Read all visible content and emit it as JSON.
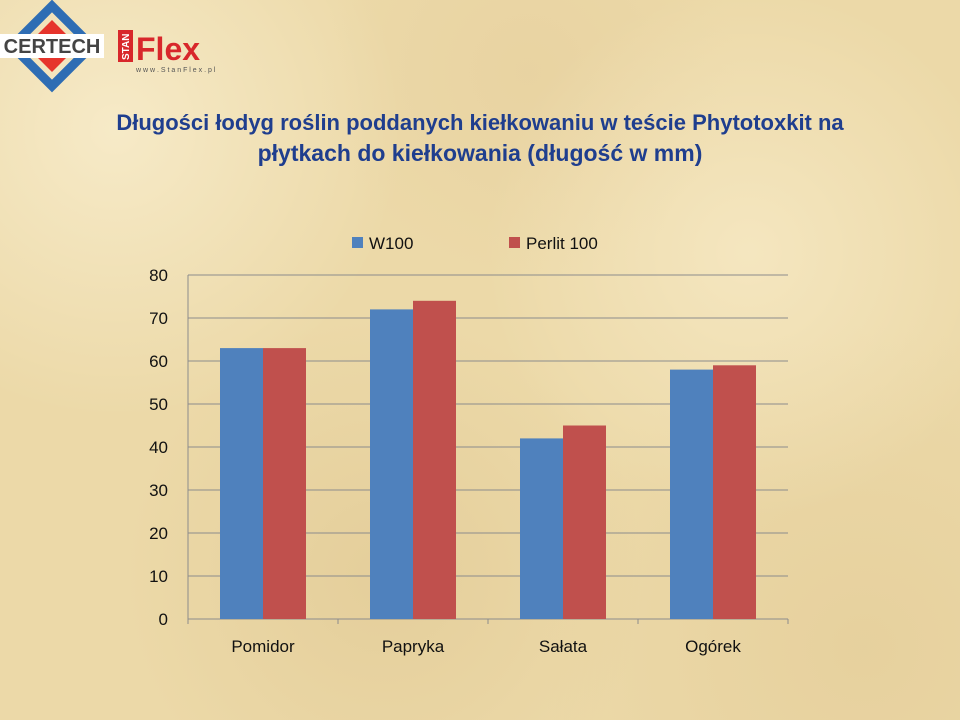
{
  "logos": {
    "certech": "CERTECH",
    "stan": "STAN",
    "flex": "Flex",
    "url": "w w w . S t a n F l e x . p l"
  },
  "colors": {
    "title": "#1f3e8e",
    "w100": "#4f81bd",
    "perlit": "#c0504d"
  },
  "chart_data": {
    "type": "bar",
    "title_line1": "Długości łodyg roślin poddanych kiełkowaniu w teście Phytotoxkit na",
    "title_line2": "płytkach do kiełkowania (długość w mm)",
    "categories": [
      "Pomidor",
      "Papryka",
      "Sałata",
      "Ogórek"
    ],
    "series": [
      {
        "name": "W100",
        "values": [
          63,
          72,
          42,
          58
        ],
        "color": "#4f81bd"
      },
      {
        "name": "Perlit 100",
        "values": [
          63,
          74,
          45,
          59
        ],
        "color": "#c0504d"
      }
    ],
    "ylim": [
      0,
      80
    ],
    "yticks": [
      0,
      10,
      20,
      30,
      40,
      50,
      60,
      70,
      80
    ],
    "grid": true,
    "legend": "top-center"
  }
}
